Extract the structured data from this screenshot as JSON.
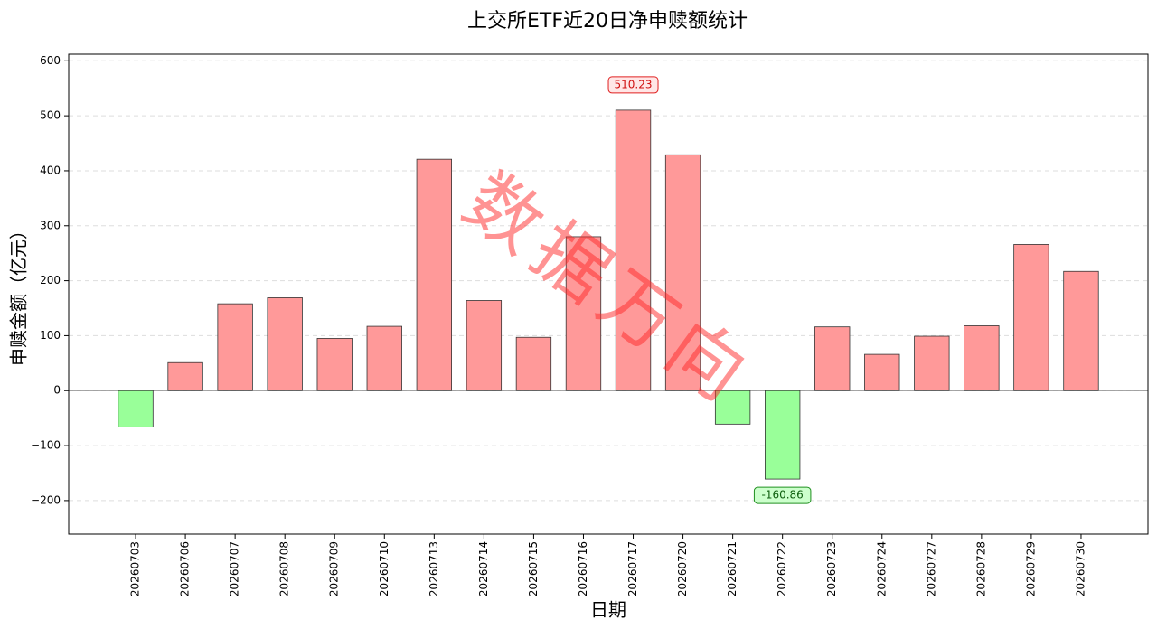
{
  "chart_data": {
    "type": "bar",
    "title": "上交所ETF近20日净申赎额统计",
    "x_label": "日期",
    "y_label": "申赎金额（亿元）",
    "watermark": "数据万向",
    "categories": [
      "20260703",
      "20260706",
      "20260707",
      "20260708",
      "20260709",
      "20260710",
      "20260713",
      "20260714",
      "20260715",
      "20260716",
      "20260717",
      "20260720",
      "20260721",
      "20260722",
      "20260723",
      "20260724",
      "20260727",
      "20260728",
      "20260729",
      "20260730"
    ],
    "values": [
      -66,
      51,
      158,
      169,
      95,
      117,
      421,
      164,
      97,
      280,
      510.23,
      429,
      -61,
      -160.86,
      116,
      66,
      99,
      118,
      266,
      217
    ],
    "value_labels": [
      null,
      null,
      null,
      null,
      null,
      null,
      null,
      null,
      null,
      null,
      "510.23",
      null,
      null,
      "-160.86",
      null,
      null,
      null,
      null,
      null,
      null
    ],
    "colors": {
      "positive": "#ff9999",
      "negative": "#99ff99"
    },
    "ylim": [
      -261,
      612
    ],
    "yticks": [
      {
        "value": -200,
        "label": "−200"
      },
      {
        "value": -100,
        "label": "−100"
      },
      0,
      100,
      200,
      300,
      400,
      500,
      600
    ],
    "grid": true
  }
}
